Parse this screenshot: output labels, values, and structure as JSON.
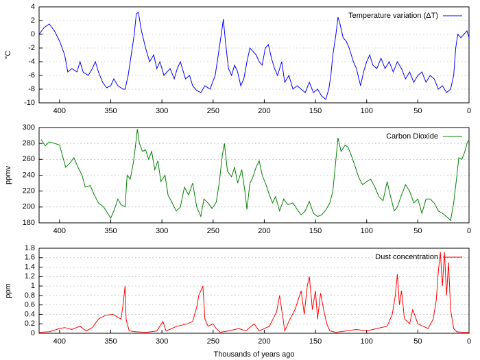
{
  "chart_data": [
    {
      "type": "line",
      "ylabel": "°C",
      "xlim": [
        420,
        0
      ],
      "xticks": [
        400,
        350,
        300,
        250,
        200,
        150,
        100,
        50,
        0
      ],
      "ylim": [
        -10,
        4
      ],
      "yticks": [
        -10,
        -8,
        -6,
        -4,
        -2,
        0,
        2,
        4
      ],
      "grid": true,
      "legend": "top-right",
      "x": [
        420,
        415,
        410,
        405,
        400,
        395,
        392,
        388,
        383,
        380,
        377,
        372,
        368,
        365,
        362,
        358,
        354,
        350,
        347,
        343,
        338,
        336,
        333,
        330,
        327,
        325,
        323,
        320,
        316,
        312,
        308,
        305,
        302,
        298,
        295,
        292,
        288,
        285,
        282,
        280,
        277,
        273,
        270,
        266,
        262,
        258,
        253,
        248,
        245,
        242,
        240,
        238,
        235,
        232,
        229,
        226,
        223,
        220,
        217,
        214,
        211,
        208,
        205,
        202,
        199,
        196,
        193,
        190,
        187,
        183,
        180,
        176,
        172,
        168,
        164,
        160,
        156,
        152,
        148,
        144,
        140,
        137,
        135,
        133,
        130,
        128,
        126,
        123,
        120,
        117,
        113,
        110,
        106,
        103,
        100,
        97,
        94,
        90,
        86,
        82,
        78,
        74,
        70,
        66,
        62,
        58,
        54,
        50,
        46,
        42,
        38,
        34,
        30,
        26,
        22,
        18,
        15,
        13,
        11,
        8,
        5,
        2,
        0
      ],
      "series": [
        {
          "name": "Temperature variation (ΔT)",
          "color": "#0000ff",
          "values": [
            0,
            1,
            1.5,
            0.5,
            -1,
            -3,
            -5.5,
            -5,
            -5.5,
            -4,
            -5.5,
            -6,
            -5,
            -4,
            -5.5,
            -7,
            -7.8,
            -7.5,
            -6.5,
            -7.5,
            -8,
            -8,
            -6,
            -3,
            0,
            3,
            3.2,
            0.5,
            -2,
            -4,
            -3,
            -5,
            -4,
            -6,
            -5.5,
            -5,
            -6.5,
            -5,
            -4,
            -5,
            -6.5,
            -6,
            -7.5,
            -8.2,
            -8.5,
            -7.5,
            -8,
            -6,
            -3,
            0,
            2.2,
            -1,
            -5,
            -6,
            -4.5,
            -5.5,
            -7.5,
            -6.5,
            -4,
            -2,
            -2.5,
            -3,
            -4,
            -4.5,
            -2,
            -1.5,
            -3.5,
            -5,
            -6,
            -4,
            -7,
            -6,
            -8,
            -7.5,
            -8,
            -8.5,
            -7,
            -8.5,
            -8,
            -9,
            -9.5,
            -8,
            -6,
            -3,
            0,
            2.5,
            1.5,
            -0.5,
            -1,
            -2,
            -4,
            -5,
            -7.5,
            -5.5,
            -4,
            -3,
            -4.5,
            -5,
            -3.5,
            -5,
            -4,
            -5.5,
            -4,
            -5,
            -6.5,
            -5.5,
            -7,
            -6,
            -5.5,
            -7,
            -6,
            -6.5,
            -8,
            -7.5,
            -8.5,
            -8,
            -6,
            -2,
            0,
            -0.5,
            0,
            0.5,
            -0.5
          ]
        }
      ]
    },
    {
      "type": "line",
      "ylabel": "ppmv",
      "xlim": [
        420,
        0
      ],
      "xticks": [
        400,
        350,
        300,
        250,
        200,
        150,
        100,
        50,
        0
      ],
      "ylim": [
        180,
        300
      ],
      "yticks": [
        180,
        200,
        220,
        240,
        260,
        280,
        300
      ],
      "grid": true,
      "legend": "top-right",
      "x": [
        418,
        414,
        410,
        405,
        400,
        397,
        394,
        390,
        386,
        382,
        378,
        375,
        370,
        366,
        362,
        357,
        352,
        350,
        347,
        343,
        340,
        336,
        334,
        331,
        328,
        326,
        324,
        322,
        319,
        316,
        313,
        310,
        307,
        304,
        301,
        297,
        294,
        290,
        286,
        282,
        278,
        274,
        270,
        266,
        262,
        259,
        255,
        251,
        247,
        244,
        241,
        239,
        236,
        232,
        229,
        226,
        222,
        219,
        217,
        214,
        211,
        208,
        205,
        202,
        198,
        195,
        192,
        189,
        185,
        181,
        177,
        172,
        168,
        164,
        160,
        156,
        152,
        148,
        144,
        140,
        136,
        133,
        130,
        128,
        125,
        121,
        118,
        115,
        111,
        108,
        104,
        100,
        96,
        92,
        88,
        84,
        80,
        77,
        73,
        70,
        66,
        62,
        58,
        54,
        50,
        46,
        42,
        38,
        34,
        30,
        26,
        22,
        18,
        15,
        12,
        10,
        7,
        4,
        2,
        0
      ],
      "series": [
        {
          "name": "Carbon Dioxide",
          "color": "#008000",
          "values": [
            285,
            277,
            282,
            280,
            278,
            264,
            250,
            255,
            262,
            250,
            240,
            225,
            227,
            215,
            205,
            200,
            190,
            186,
            195,
            210,
            203,
            200,
            240,
            235,
            255,
            275,
            298,
            280,
            270,
            272,
            260,
            270,
            247,
            258,
            232,
            240,
            215,
            205,
            195,
            200,
            225,
            215,
            230,
            200,
            188,
            210,
            205,
            198,
            206,
            230,
            265,
            280,
            245,
            238,
            250,
            230,
            247,
            220,
            197,
            230,
            238,
            250,
            258,
            240,
            227,
            215,
            205,
            213,
            195,
            210,
            203,
            205,
            197,
            190,
            195,
            207,
            192,
            188,
            190,
            196,
            205,
            220,
            260,
            287,
            270,
            278,
            275,
            265,
            250,
            238,
            228,
            232,
            235,
            225,
            213,
            208,
            232,
            215,
            195,
            200,
            215,
            228,
            220,
            205,
            210,
            192,
            210,
            210,
            205,
            195,
            192,
            188,
            183,
            205,
            238,
            262,
            260,
            270,
            280,
            285
          ]
        }
      ]
    },
    {
      "type": "line",
      "ylabel": "ppm",
      "xlabel": "Thousands of years ago",
      "xlim": [
        420,
        0
      ],
      "xticks": [
        400,
        350,
        300,
        250,
        200,
        150,
        100,
        50,
        0
      ],
      "ylim": [
        0,
        1.8
      ],
      "yticks": [
        0,
        0.2,
        0.4,
        0.6,
        0.8,
        1,
        1.2,
        1.4,
        1.6,
        1.8
      ],
      "grid": true,
      "legend": "top-right",
      "x": [
        420,
        410,
        400,
        395,
        388,
        380,
        374,
        368,
        362,
        355,
        348,
        344,
        340,
        338,
        336,
        335,
        332,
        325,
        315,
        305,
        299,
        296,
        285,
        275,
        270,
        266,
        264,
        262,
        260,
        258,
        255,
        250,
        247,
        243,
        235,
        225,
        218,
        210,
        205,
        195,
        188,
        185,
        183,
        180,
        175,
        170,
        167,
        164,
        161,
        158,
        156,
        153,
        150,
        148,
        145,
        142,
        139,
        136,
        130,
        120,
        110,
        100,
        90,
        80,
        75,
        72,
        70,
        68,
        66,
        63,
        58,
        55,
        50,
        45,
        40,
        35,
        32,
        30,
        28,
        26,
        24,
        22,
        20,
        18,
        15,
        12,
        5,
        0
      ],
      "series": [
        {
          "name": "Dust concentration",
          "color": "#ff0000",
          "values": [
            0.02,
            0.03,
            0.1,
            0.12,
            0.08,
            0.15,
            0.05,
            0.12,
            0.3,
            0.38,
            0.4,
            0.35,
            0.3,
            0.6,
            1.0,
            0.3,
            0.05,
            0.03,
            0.02,
            0.05,
            0.25,
            0.05,
            0.15,
            0.2,
            0.25,
            0.55,
            0.8,
            0.9,
            1.0,
            0.3,
            0.15,
            0.2,
            0.1,
            0.02,
            0.05,
            0.1,
            0.05,
            0.2,
            0.05,
            0.15,
            0.45,
            0.8,
            0.5,
            0.05,
            0.3,
            0.5,
            0.7,
            0.9,
            0.4,
            1.0,
            1.2,
            0.5,
            0.9,
            0.3,
            0.85,
            0.5,
            0.2,
            0.05,
            0.02,
            0.05,
            0.08,
            0.05,
            0.1,
            0.15,
            0.4,
            0.8,
            1.25,
            0.6,
            0.9,
            0.3,
            0.2,
            0.5,
            0.2,
            0.15,
            0.1,
            0.3,
            0.7,
            1.3,
            1.72,
            1.0,
            1.72,
            0.8,
            1.5,
            0.5,
            0.1,
            0.03,
            0.02,
            0.02
          ]
        }
      ]
    }
  ]
}
